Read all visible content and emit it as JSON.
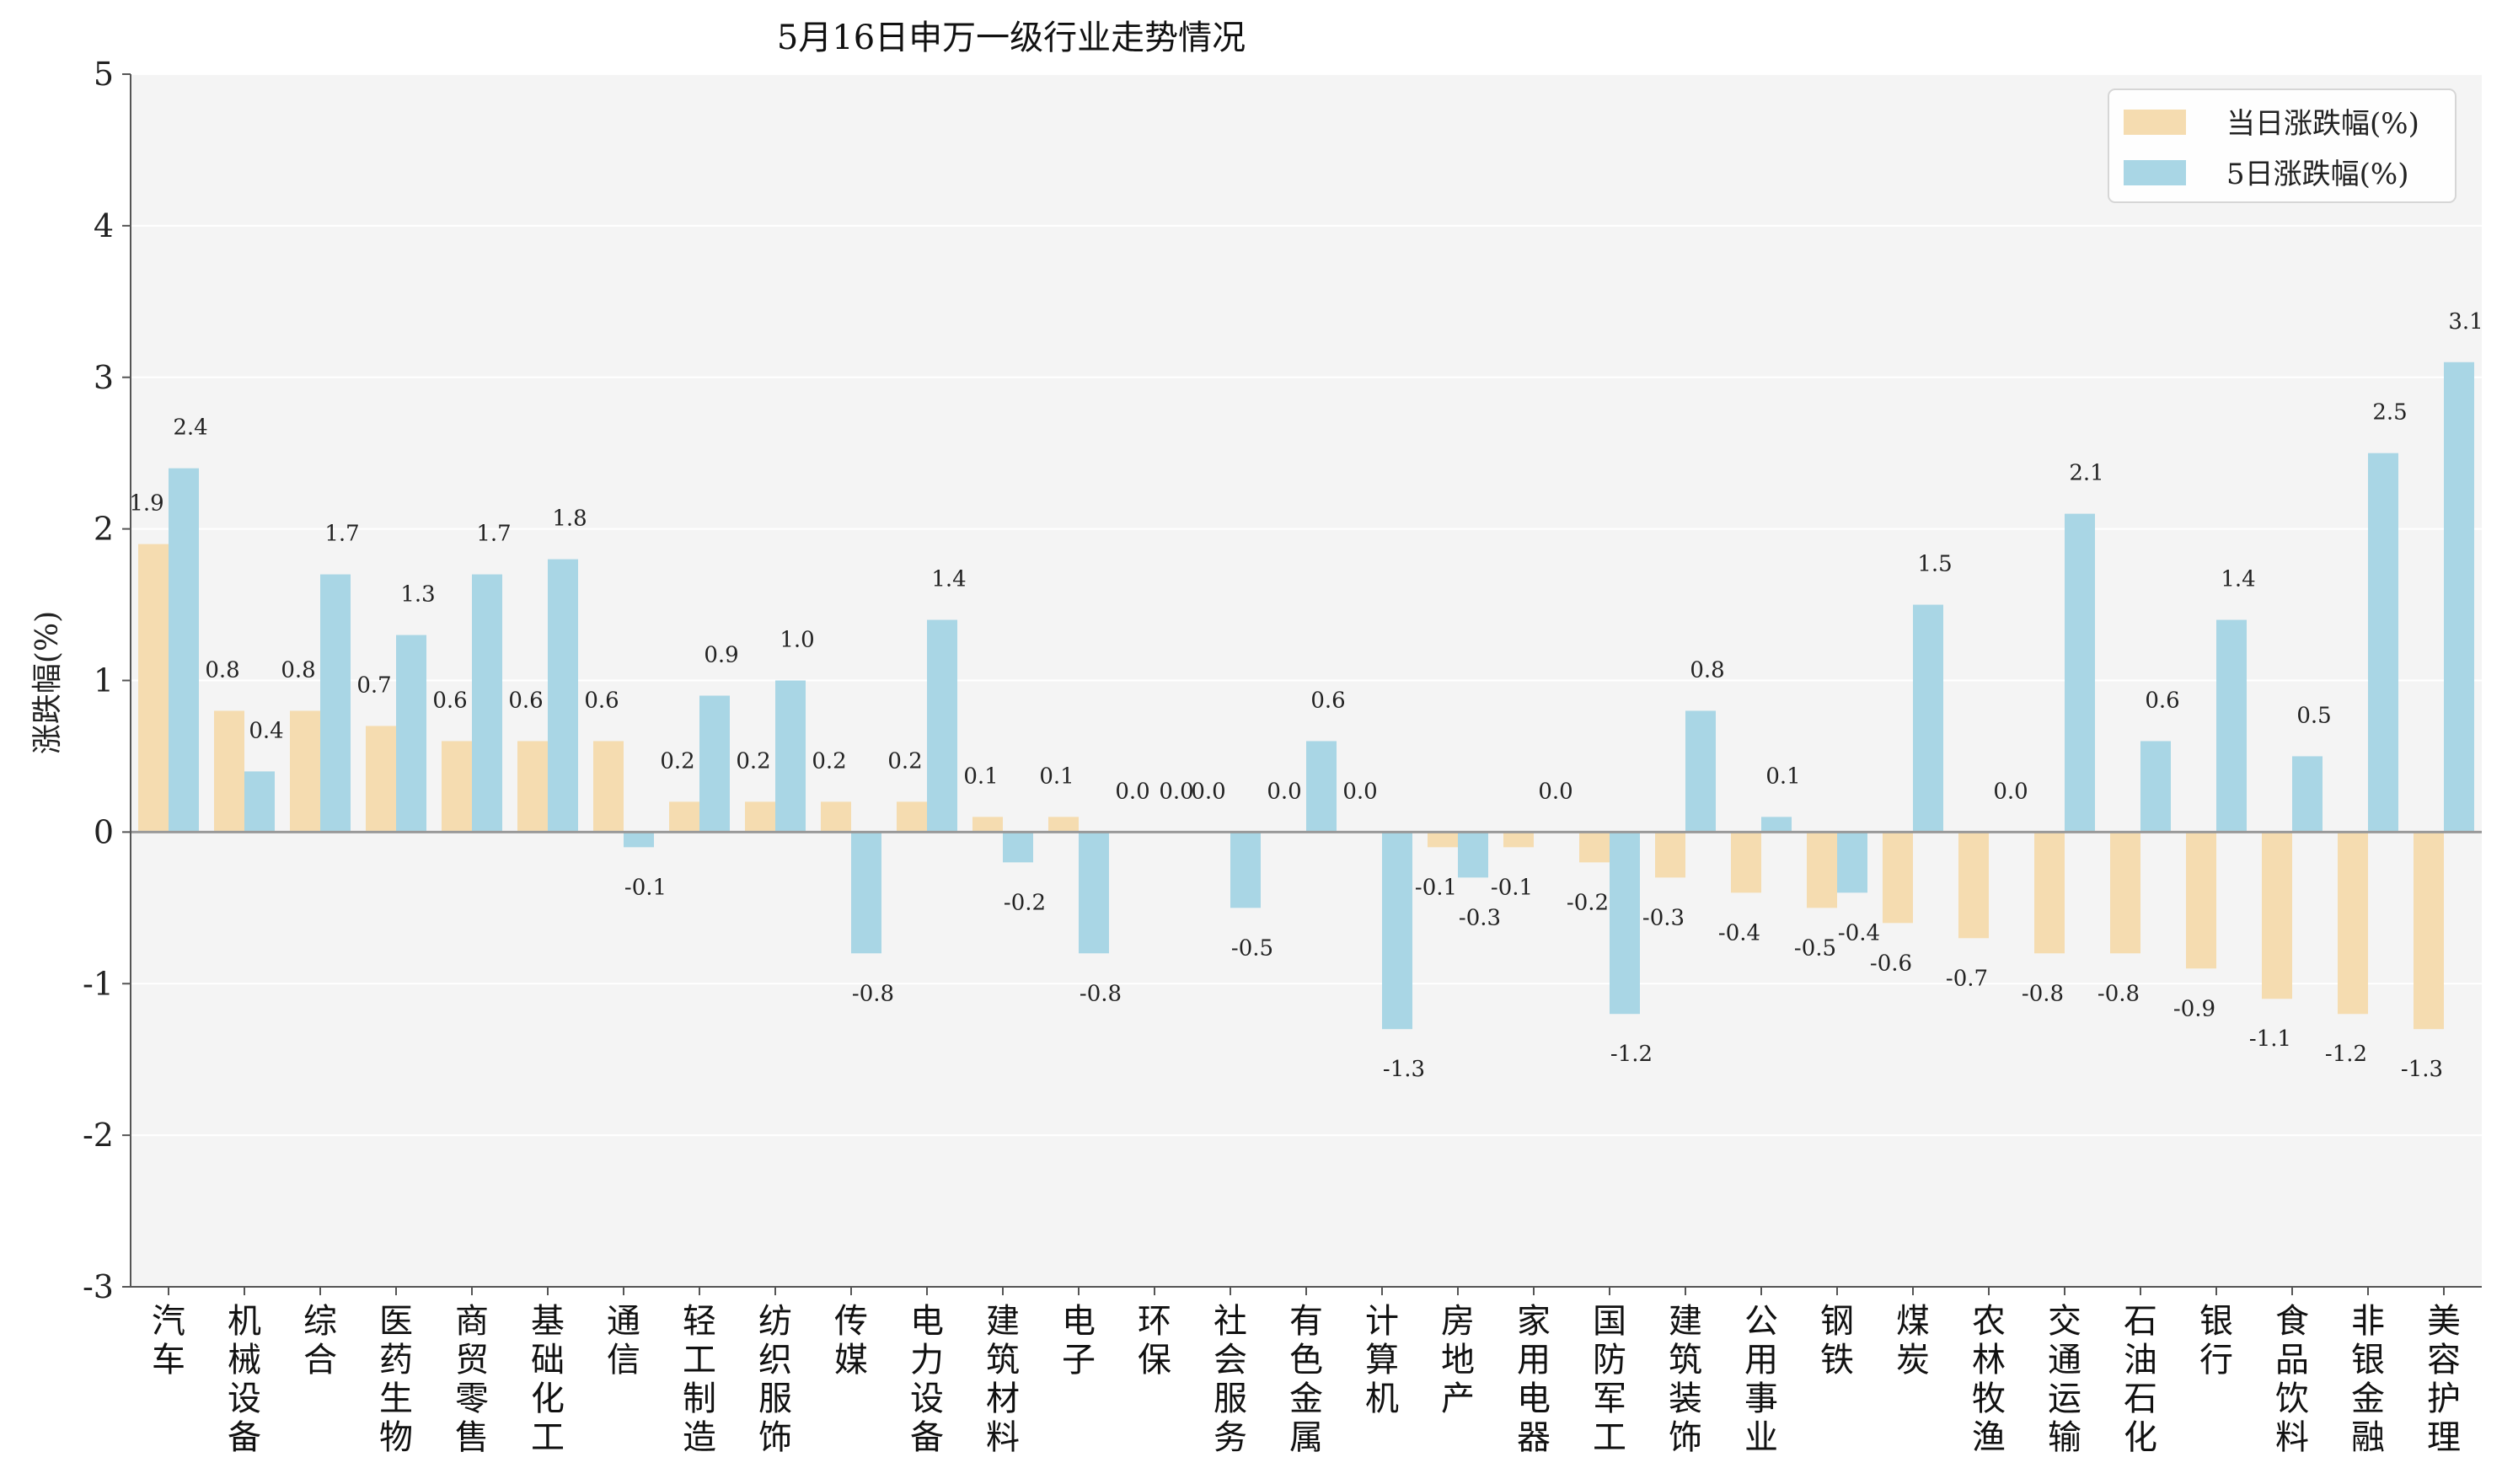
{
  "chart_data": {
    "type": "bar",
    "title": "5月16日申万一级行业走势情况",
    "xlabel": "",
    "ylabel": "涨跌幅(%)",
    "ylim": [
      -3,
      5
    ],
    "yticks": [
      -3,
      -2,
      -1,
      0,
      1,
      2,
      3,
      4,
      5
    ],
    "legend_position": "top-right",
    "grid": "horizontal",
    "categories": [
      "汽车",
      "机械设备",
      "综合",
      "医药生物",
      "商贸零售",
      "基础化工",
      "通信",
      "轻工制造",
      "纺织服饰",
      "传媒",
      "电力设备",
      "建筑材料",
      "电子",
      "环保",
      "社会服务",
      "有色金属",
      "计算机",
      "房地产",
      "家用电器",
      "国防军工",
      "建筑装饰",
      "公用事业",
      "钢铁",
      "煤炭",
      "农林牧渔",
      "交通运输",
      "石油石化",
      "银行",
      "食品饮料",
      "非银金融",
      "美容护理"
    ],
    "series": [
      {
        "name": "当日涨跌幅(%)",
        "color": "#f5dcb0",
        "values": [
          1.9,
          0.8,
          0.8,
          0.7,
          0.6,
          0.6,
          0.6,
          0.2,
          0.2,
          0.2,
          0.2,
          0.1,
          0.1,
          0.0,
          0.0,
          0.0,
          0.0,
          -0.1,
          -0.1,
          -0.2,
          -0.3,
          -0.4,
          -0.5,
          -0.6,
          -0.7,
          -0.8,
          -0.8,
          -0.9,
          -1.1,
          -1.2,
          -1.3
        ],
        "labels": [
          "1.9",
          "0.8",
          "0.8",
          "0.7",
          "0.6",
          "0.6",
          "0.6",
          "0.2",
          "0.2",
          "0.2",
          "0.2",
          "0.1",
          "0.1",
          "0.0",
          "0.0",
          "0.0",
          "0.0",
          "-0.1",
          "-0.1",
          "-0.2",
          "-0.3",
          "-0.4",
          "-0.5",
          "-0.6",
          "-0.7",
          "-0.8",
          "-0.8",
          "-0.9",
          "-1.1",
          "-1.2",
          "-1.3"
        ]
      },
      {
        "name": "5日涨跌幅(%)",
        "color": "#a9d6e5",
        "values": [
          2.4,
          0.4,
          1.7,
          1.3,
          1.7,
          1.8,
          -0.1,
          0.9,
          1.0,
          -0.8,
          1.4,
          -0.2,
          -0.8,
          0.0,
          -0.5,
          0.6,
          -1.3,
          -0.3,
          0.0,
          -1.2,
          0.8,
          0.1,
          -0.4,
          1.5,
          0.0,
          2.1,
          0.6,
          1.4,
          0.5,
          2.5,
          3.1
        ],
        "labels": [
          "2.4",
          "0.4",
          "1.7",
          "1.3",
          "1.7",
          "1.8",
          "-0.1",
          "0.9",
          "1.0",
          "-0.8",
          "1.4",
          "-0.2",
          "-0.8",
          "0.0",
          "-0.5",
          "0.6",
          "-1.3",
          "-0.3",
          "0.0",
          "-1.2",
          "0.8",
          "0.1",
          "-0.4",
          "1.5",
          "0.0",
          "2.1",
          "0.6",
          "1.4",
          "0.5",
          "2.5",
          "3.1"
        ]
      }
    ]
  },
  "colors": {
    "plot_background": "#f4f4f4",
    "grid": "#ffffff",
    "axis": "#555555",
    "zero_line": "#999999"
  }
}
